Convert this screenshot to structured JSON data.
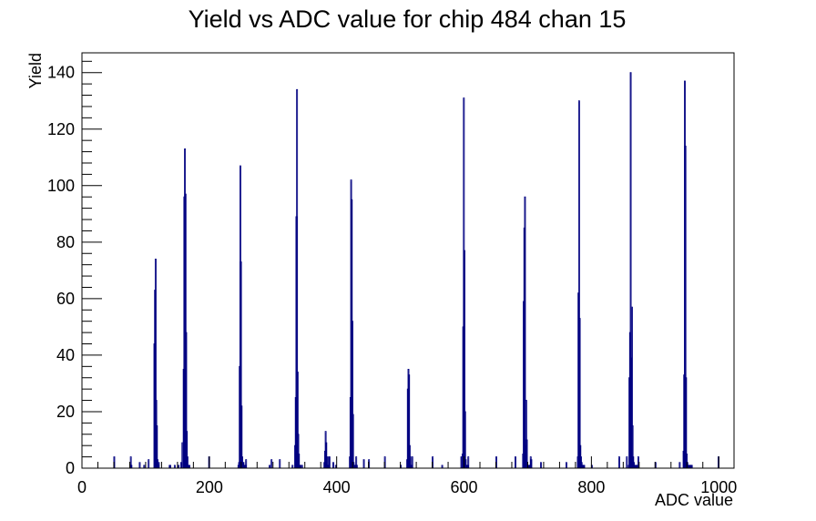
{
  "chart_data": {
    "type": "bar",
    "title": "Yield vs ADC value for chip 484 chan 15",
    "xlabel": "ADC value",
    "ylabel": "Yield",
    "xlim": [
      0,
      1024
    ],
    "ylim": [
      0,
      147
    ],
    "x_ticks": [
      "0",
      "200",
      "400",
      "600",
      "800",
      "1000"
    ],
    "y_ticks": [
      "0",
      "20",
      "40",
      "60",
      "80",
      "100",
      "120",
      "140"
    ],
    "color": "#000080",
    "grid": false,
    "legend": "none",
    "series": [
      {
        "x": [
          50,
          76,
          77,
          90,
          97,
          104,
          113,
          114,
          115,
          116,
          117,
          118,
          119,
          120,
          137,
          138,
          145,
          151,
          155,
          157,
          159,
          160,
          161,
          162,
          163,
          164,
          165,
          166,
          167,
          168,
          199,
          245,
          246,
          247,
          248,
          249,
          250,
          251,
          252,
          253,
          254,
          255,
          256,
          257,
          294,
          297,
          310,
          330,
          334,
          335,
          336,
          337,
          338,
          339,
          340,
          341,
          342,
          343,
          345,
          380,
          381,
          382,
          383,
          384,
          385,
          386,
          387,
          388,
          394,
          398,
          420,
          421,
          422,
          423,
          424,
          425,
          426,
          427,
          428,
          429,
          430,
          431,
          442,
          450,
          475,
          500,
          510,
          511,
          512,
          513,
          514,
          515,
          516,
          517,
          518,
          550,
          565,
          595,
          597,
          598,
          599,
          600,
          601,
          602,
          603,
          604,
          605,
          606,
          650,
          680,
          692,
          693,
          694,
          695,
          696,
          697,
          698,
          699,
          700,
          701,
          702,
          703,
          704,
          705,
          720,
          760,
          778,
          779,
          780,
          781,
          782,
          783,
          784,
          785,
          786,
          787,
          788,
          800,
          843,
          855,
          858,
          859,
          860,
          861,
          862,
          863,
          864,
          865,
          866,
          867,
          868,
          869,
          870,
          871,
          872,
          873,
          900,
          938,
          944,
          945,
          946,
          947,
          948,
          949,
          950,
          951,
          952,
          953,
          954,
          955,
          956,
          957,
          999
        ],
        "y": [
          4,
          4,
          1,
          2,
          1,
          3,
          44,
          63,
          74,
          24,
          15,
          3,
          1,
          2,
          1,
          1,
          1,
          1,
          2,
          9,
          35,
          96,
          113,
          97,
          48,
          13,
          4,
          1,
          1,
          1,
          4,
          1,
          2,
          36,
          107,
          73,
          22,
          4,
          2,
          2,
          1,
          1,
          1,
          3,
          1,
          3,
          3,
          1,
          8,
          25,
          89,
          134,
          34,
          12,
          5,
          1,
          1,
          1,
          1,
          2,
          6,
          13,
          9,
          4,
          1,
          1,
          4,
          4,
          2,
          1,
          4,
          25,
          102,
          95,
          52,
          19,
          2,
          1,
          1,
          1,
          4,
          1,
          3,
          3,
          4,
          1,
          3,
          28,
          35,
          33,
          8,
          4,
          1,
          1,
          4,
          4,
          1,
          4,
          5,
          50,
          131,
          77,
          20,
          3,
          1,
          1,
          1,
          4,
          4,
          4,
          5,
          59,
          85,
          96,
          8,
          24,
          10,
          1,
          1,
          1,
          1,
          1,
          4,
          3,
          2,
          2,
          4,
          62,
          130,
          53,
          8,
          4,
          2,
          1,
          1,
          1,
          1,
          1,
          4,
          4,
          1,
          32,
          48,
          140,
          39,
          57,
          15,
          4,
          2,
          1,
          1,
          1,
          1,
          1,
          1,
          4,
          2,
          2,
          6,
          33,
          137,
          114,
          32,
          5,
          2,
          1,
          1,
          1,
          1,
          1,
          1,
          1,
          4
        ]
      }
    ]
  }
}
